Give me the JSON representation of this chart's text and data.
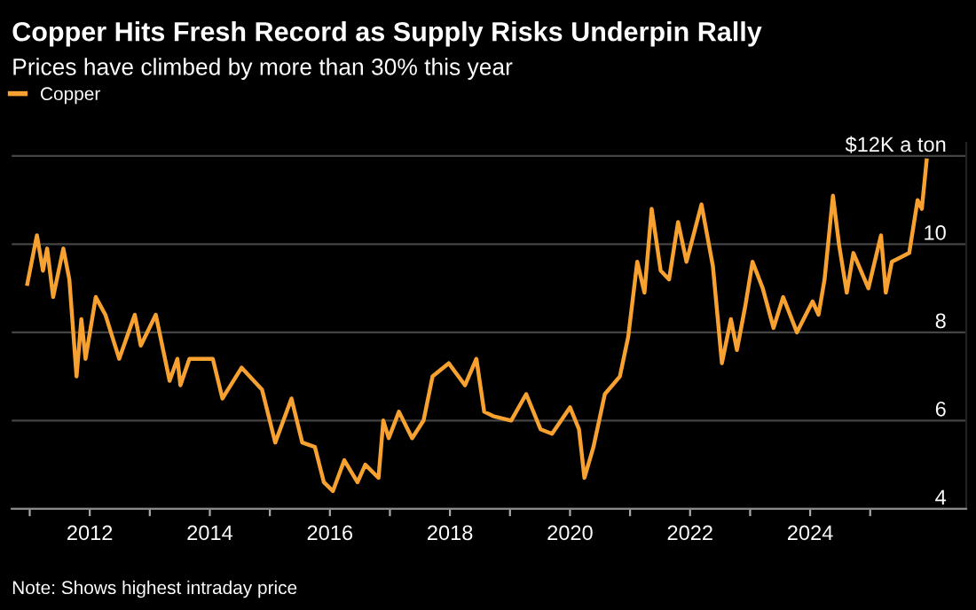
{
  "chart_data": {
    "type": "line",
    "title": "Copper Hits Fresh Record as Supply Risks Underpin Rally",
    "subtitle": "Prices have climbed by more than 30% this year",
    "annotations": [
      "Note: Shows highest intraday price"
    ],
    "series": [
      {
        "name": "Copper",
        "color": "#f7a131",
        "x": [
          2010.96,
          2011.12,
          2011.22,
          2011.29,
          2011.39,
          2011.56,
          2011.66,
          2011.78,
          2011.86,
          2011.93,
          2012.1,
          2012.26,
          2012.49,
          2012.75,
          2012.85,
          2013.1,
          2013.33,
          2013.46,
          2013.51,
          2013.66,
          2014.05,
          2014.21,
          2014.53,
          2014.87,
          2015.09,
          2015.36,
          2015.54,
          2015.75,
          2015.9,
          2016.05,
          2016.24,
          2016.46,
          2016.59,
          2016.81,
          2016.89,
          2016.98,
          2017.15,
          2017.37,
          2017.56,
          2017.71,
          2017.98,
          2018.25,
          2018.44,
          2018.57,
          2018.72,
          2019.02,
          2019.27,
          2019.51,
          2019.7,
          2020.0,
          2020.15,
          2020.24,
          2020.39,
          2020.58,
          2020.83,
          2020.97,
          2021.12,
          2021.24,
          2021.36,
          2021.51,
          2021.65,
          2021.8,
          2021.94,
          2022.19,
          2022.38,
          2022.53,
          2022.68,
          2022.78,
          2022.92,
          2023.04,
          2023.21,
          2023.39,
          2023.55,
          2023.78,
          2024.04,
          2024.14,
          2024.24,
          2024.38,
          2024.48,
          2024.61,
          2024.72,
          2024.97,
          2025.18,
          2025.26,
          2025.36,
          2025.65,
          2025.79,
          2025.86,
          2025.94
        ],
        "values": [
          9.1,
          10.2,
          9.4,
          9.9,
          8.8,
          9.9,
          9.2,
          7.0,
          8.3,
          7.4,
          8.8,
          8.4,
          7.4,
          8.4,
          7.7,
          8.4,
          6.9,
          7.4,
          6.8,
          7.4,
          7.4,
          6.5,
          7.2,
          6.7,
          5.5,
          6.5,
          5.5,
          5.4,
          4.6,
          4.4,
          5.1,
          4.6,
          5.0,
          4.7,
          6.0,
          5.6,
          6.2,
          5.6,
          6.0,
          7.0,
          7.3,
          6.8,
          7.4,
          6.2,
          6.1,
          6.0,
          6.6,
          5.8,
          5.7,
          6.3,
          5.8,
          4.7,
          5.4,
          6.6,
          7.0,
          7.9,
          9.6,
          8.9,
          10.8,
          9.4,
          9.2,
          10.5,
          9.6,
          10.9,
          9.5,
          7.3,
          8.3,
          7.6,
          8.6,
          9.6,
          9.0,
          8.1,
          8.8,
          8.0,
          8.7,
          8.4,
          9.2,
          11.1,
          10.0,
          8.9,
          9.8,
          9.0,
          10.2,
          8.9,
          9.6,
          9.8,
          11.0,
          10.8,
          11.9
        ]
      }
    ],
    "xlim": [
      2010.7,
      2026.6
    ],
    "xticks": [
      {
        "value": 2011,
        "label": null
      },
      2012,
      {
        "value": 2013,
        "label": null
      },
      2014,
      {
        "value": 2015,
        "label": null
      },
      2016,
      {
        "value": 2017,
        "label": null
      },
      2018,
      {
        "value": 2019,
        "label": null
      },
      2020,
      {
        "value": 2021,
        "label": null
      },
      2022,
      {
        "value": 2023,
        "label": null
      },
      2024,
      {
        "value": 2025,
        "label": null
      }
    ],
    "ylim": [
      4,
      12.3
    ],
    "yticks": [
      4,
      6,
      8,
      10,
      {
        "value": 12,
        "label": "$12K a ton"
      }
    ],
    "grid": "y",
    "legend": "top left",
    "line_style": "solid"
  }
}
